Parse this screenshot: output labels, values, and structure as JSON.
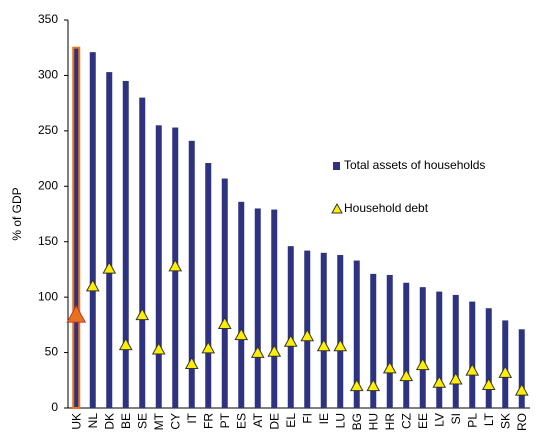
{
  "chart_data": {
    "type": "bar_marker",
    "ylabel": "% of GDP",
    "categories": [
      "UK",
      "NL",
      "DK",
      "BE",
      "SE",
      "MT",
      "CY",
      "IT",
      "FR",
      "PT",
      "ES",
      "AT",
      "DE",
      "EL",
      "FI",
      "IE",
      "LU",
      "BG",
      "HU",
      "HR",
      "CZ",
      "EE",
      "LV",
      "SI",
      "PL",
      "LT",
      "SK",
      "RO"
    ],
    "series": [
      {
        "name": "Total assets of households",
        "color": "#2e3380",
        "kind": "bar",
        "values": [
          325,
          321,
          303,
          295,
          280,
          255,
          253,
          241,
          221,
          207,
          186,
          180,
          179,
          146,
          142,
          140,
          138,
          133,
          121,
          120,
          113,
          109,
          105,
          102,
          96,
          90,
          79,
          71
        ]
      },
      {
        "name": "Household debt",
        "color": "#ffee00",
        "kind": "triangle",
        "values": [
          84,
          110,
          126,
          57,
          84,
          53,
          128,
          40,
          54,
          76,
          66,
          50,
          51,
          60,
          65,
          56,
          56,
          20,
          20,
          36,
          29,
          39,
          23,
          26,
          34,
          21,
          32,
          16
        ]
      }
    ],
    "highlight_category": "UK",
    "highlight_color": "#e8731f",
    "ylim": [
      0,
      350
    ],
    "yticks": [
      0,
      50,
      100,
      150,
      200,
      250,
      300,
      350
    ],
    "grid": false
  }
}
